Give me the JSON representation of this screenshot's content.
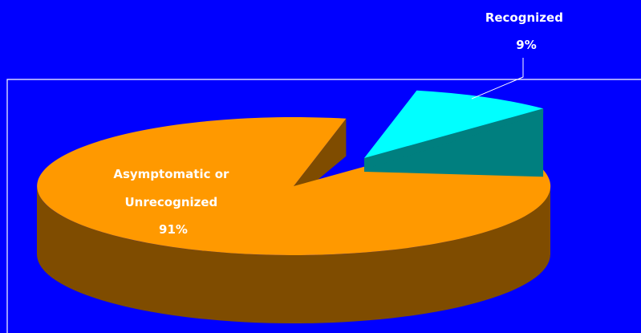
{
  "chart_data": {
    "type": "pie",
    "slices": [
      {
        "label_lines": [
          "Asymptomatic or",
          "Unrecognized"
        ],
        "value": 91,
        "value_label": "91%",
        "color": "#ff9900",
        "side_color": "#7f4c00"
      },
      {
        "label_lines": [
          "Recognized"
        ],
        "value": 9,
        "value_label": "9%",
        "color": "#00ffff",
        "side_color": "#007f7f",
        "exploded": true
      }
    ],
    "background": "#0000ff",
    "plot_border_color": "#ffffff",
    "label_color": "#ffffff",
    "three_d": true
  }
}
